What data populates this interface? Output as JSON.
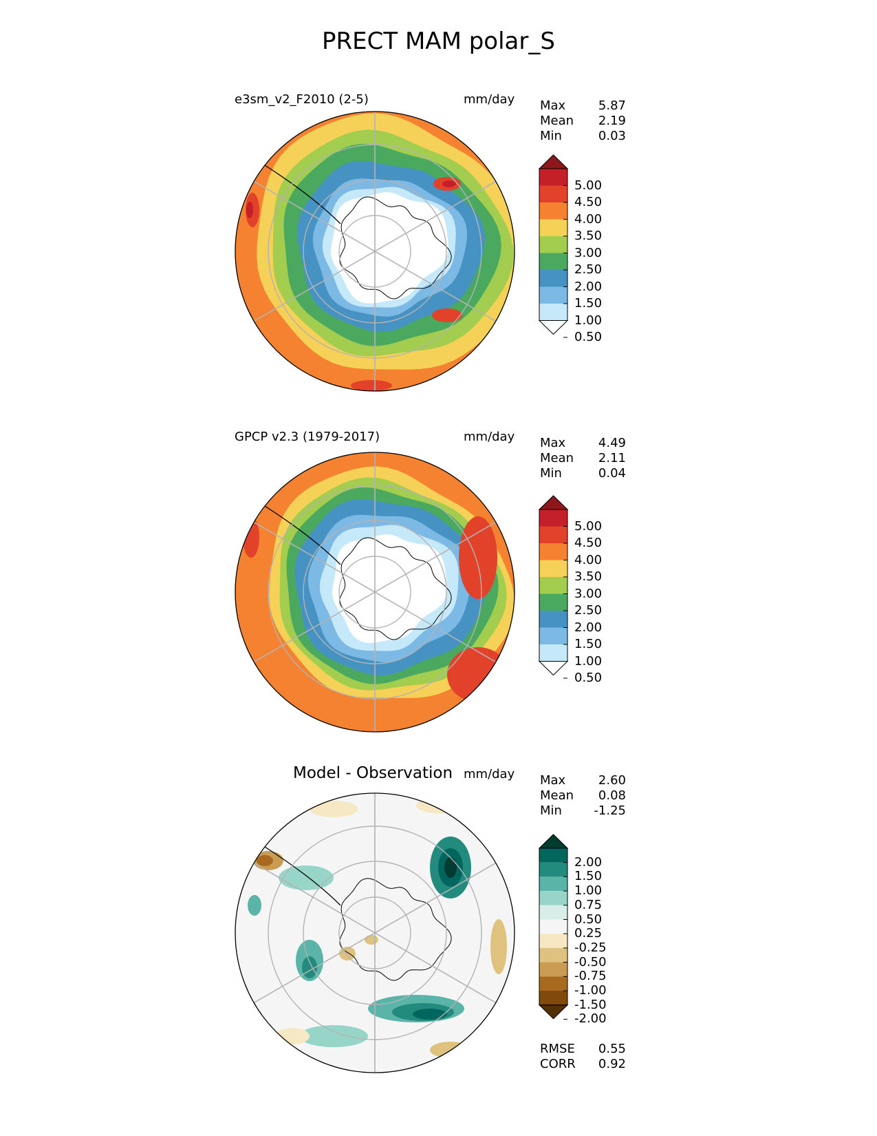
{
  "title": "PRECT MAM polar_S",
  "panels": [
    {
      "id": "test",
      "title": "e3sm_v2_F2010 (2-5)",
      "units": "mm/day",
      "stats": [
        {
          "label": "Max",
          "value": "5.87"
        },
        {
          "label": "Mean",
          "value": "2.19"
        },
        {
          "label": "Min",
          "value": "0.03"
        }
      ],
      "colorbar": {
        "levels": [
          "5.00",
          "4.50",
          "4.00",
          "3.50",
          "3.00",
          "2.50",
          "2.00",
          "1.50",
          "1.00",
          "0.50"
        ],
        "colors": [
          "#ffffff",
          "#c6e9fa",
          "#7db9e5",
          "#4693c3",
          "#4aa95e",
          "#a2cd4f",
          "#f6d157",
          "#f48231",
          "#e2412a",
          "#c3202a",
          "#8e171c"
        ]
      }
    },
    {
      "id": "reference",
      "title": "GPCP v2.3 (1979-2017)",
      "units": "mm/day",
      "stats": [
        {
          "label": "Max",
          "value": "4.49"
        },
        {
          "label": "Mean",
          "value": "2.11"
        },
        {
          "label": "Min",
          "value": "0.04"
        }
      ],
      "colorbar": {
        "levels": [
          "5.00",
          "4.50",
          "4.00",
          "3.50",
          "3.00",
          "2.50",
          "2.00",
          "1.50",
          "1.00",
          "0.50"
        ],
        "colors": [
          "#ffffff",
          "#c6e9fa",
          "#7db9e5",
          "#4693c3",
          "#4aa95e",
          "#a2cd4f",
          "#f6d157",
          "#f48231",
          "#e2412a",
          "#c3202a",
          "#8e171c"
        ]
      }
    },
    {
      "id": "difference",
      "title": "Model - Observation",
      "units": "mm/day",
      "stats": [
        {
          "label": "Max",
          "value": "2.60"
        },
        {
          "label": "Mean",
          "value": "0.08"
        },
        {
          "label": "Min",
          "value": "-1.25"
        }
      ],
      "extra_stats": [
        {
          "label": "RMSE",
          "value": "0.55"
        },
        {
          "label": "CORR",
          "value": "0.92"
        }
      ],
      "colorbar": {
        "levels": [
          "2.00",
          "1.50",
          "1.00",
          "0.75",
          "0.50",
          "0.25",
          "-0.25",
          "-0.50",
          "-0.75",
          "-1.00",
          "-1.50",
          "-2.00"
        ],
        "colors": [
          "#543005",
          "#804a0b",
          "#a76a1f",
          "#c99b53",
          "#dfc27d",
          "#f6e8c3",
          "#f5f5f5",
          "#d6ede8",
          "#98d5c9",
          "#5ab4a8",
          "#228b7e",
          "#01665e",
          "#003c30"
        ]
      }
    }
  ],
  "chart_data": [
    {
      "type": "heatmap",
      "projection": "south polar stereographic",
      "title": "e3sm_v2_F2010 (2-5)",
      "units": "mm/day",
      "contour_levels": [
        0.5,
        1.0,
        1.5,
        2.0,
        2.5,
        3.0,
        3.5,
        4.0,
        4.5,
        5.0
      ],
      "colorbar_extend": "both",
      "stats": {
        "max": 5.87,
        "mean": 2.19,
        "min": 0.03
      }
    },
    {
      "type": "heatmap",
      "projection": "south polar stereographic",
      "title": "GPCP v2.3 (1979-2017)",
      "units": "mm/day",
      "contour_levels": [
        0.5,
        1.0,
        1.5,
        2.0,
        2.5,
        3.0,
        3.5,
        4.0,
        4.5,
        5.0
      ],
      "colorbar_extend": "both",
      "stats": {
        "max": 4.49,
        "mean": 2.11,
        "min": 0.04
      }
    },
    {
      "type": "heatmap",
      "projection": "south polar stereographic",
      "title": "Model - Observation",
      "units": "mm/day",
      "contour_levels": [
        -2.0,
        -1.5,
        -1.0,
        -0.75,
        -0.5,
        -0.25,
        0.25,
        0.5,
        0.75,
        1.0,
        1.5,
        2.0
      ],
      "colorbar_extend": "both",
      "stats": {
        "max": 2.6,
        "mean": 0.08,
        "min": -1.25,
        "rmse": 0.55,
        "corr": 0.92
      }
    }
  ]
}
